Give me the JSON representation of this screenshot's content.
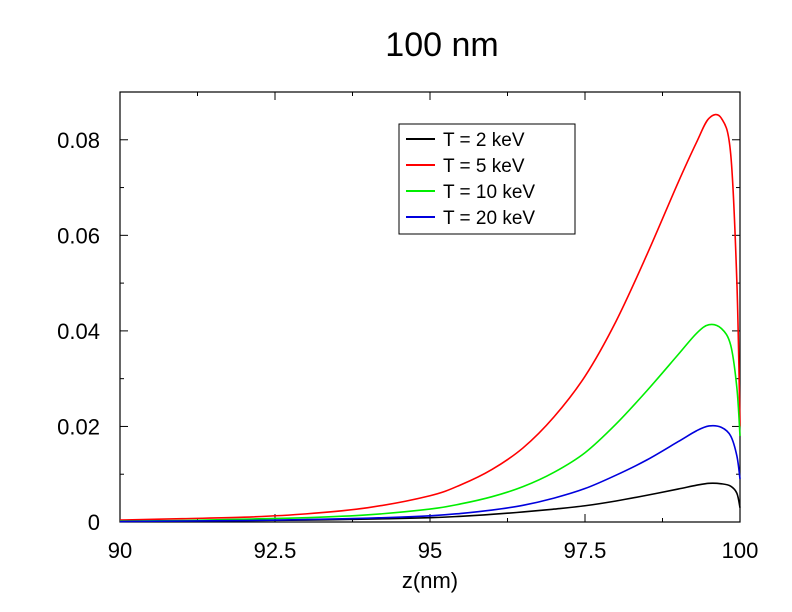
{
  "chart_data": {
    "type": "line",
    "title": "100 nm",
    "xlabel": "z(nm)",
    "ylabel": "",
    "xlim": [
      90,
      100
    ],
    "ylim": [
      0,
      0.09
    ],
    "x_ticks": [
      90,
      92.5,
      95,
      97.5,
      100
    ],
    "x_tick_labels": [
      "90",
      "92.5",
      "95",
      "97.5",
      "100"
    ],
    "y_ticks": [
      0,
      0.02,
      0.04,
      0.06,
      0.08
    ],
    "y_tick_labels": [
      "0",
      "0.02",
      "0.04",
      "0.06",
      "0.08"
    ],
    "legend_position": "top-right",
    "grid": false,
    "series": [
      {
        "name": "T = 2 keV",
        "color": "#000000",
        "x": [
          90,
          91,
          92,
          93,
          94,
          95,
          95.5,
          96,
          96.5,
          97,
          97.5,
          98,
          98.5,
          99,
          99.3,
          99.5,
          99.7,
          99.85,
          99.95,
          100
        ],
        "y": [
          0.0001,
          0.0002,
          0.0003,
          0.0004,
          0.0006,
          0.0009,
          0.0012,
          0.0016,
          0.0021,
          0.0027,
          0.0034,
          0.0044,
          0.0056,
          0.0069,
          0.0077,
          0.0081,
          0.008,
          0.0075,
          0.006,
          0.003
        ]
      },
      {
        "name": "T = 5 keV",
        "color": "#ff0000",
        "x": [
          90,
          91,
          92,
          93,
          94,
          95,
          95.5,
          96,
          96.5,
          97,
          97.5,
          98,
          98.5,
          99,
          99.3,
          99.5,
          99.7,
          99.85,
          99.95,
          100
        ],
        "y": [
          0.0004,
          0.0007,
          0.001,
          0.0017,
          0.003,
          0.0055,
          0.0078,
          0.011,
          0.0155,
          0.022,
          0.0305,
          0.042,
          0.056,
          0.071,
          0.0795,
          0.0845,
          0.0845,
          0.077,
          0.05,
          0.02
        ]
      },
      {
        "name": "T = 10 keV",
        "color": "#00ee00",
        "x": [
          90,
          91,
          92,
          93,
          94,
          95,
          95.5,
          96,
          96.5,
          97,
          97.5,
          98,
          98.5,
          99,
          99.3,
          99.5,
          99.7,
          99.85,
          99.95,
          100
        ],
        "y": [
          0.0002,
          0.0003,
          0.0006,
          0.0009,
          0.0015,
          0.0027,
          0.0038,
          0.0053,
          0.0074,
          0.0104,
          0.0145,
          0.0205,
          0.0275,
          0.035,
          0.0395,
          0.0413,
          0.0405,
          0.037,
          0.028,
          0.018
        ]
      },
      {
        "name": "T = 20 keV",
        "color": "#0000dd",
        "x": [
          90,
          91,
          92,
          93,
          94,
          95,
          95.5,
          96,
          96.5,
          97,
          97.5,
          98,
          98.5,
          99,
          99.3,
          99.5,
          99.7,
          99.85,
          99.95,
          100
        ],
        "y": [
          0.0001,
          0.0002,
          0.0003,
          0.0005,
          0.0008,
          0.0013,
          0.0018,
          0.0025,
          0.0035,
          0.005,
          0.007,
          0.0098,
          0.013,
          0.0168,
          0.0191,
          0.0201,
          0.0198,
          0.018,
          0.0138,
          0.009
        ]
      }
    ]
  }
}
